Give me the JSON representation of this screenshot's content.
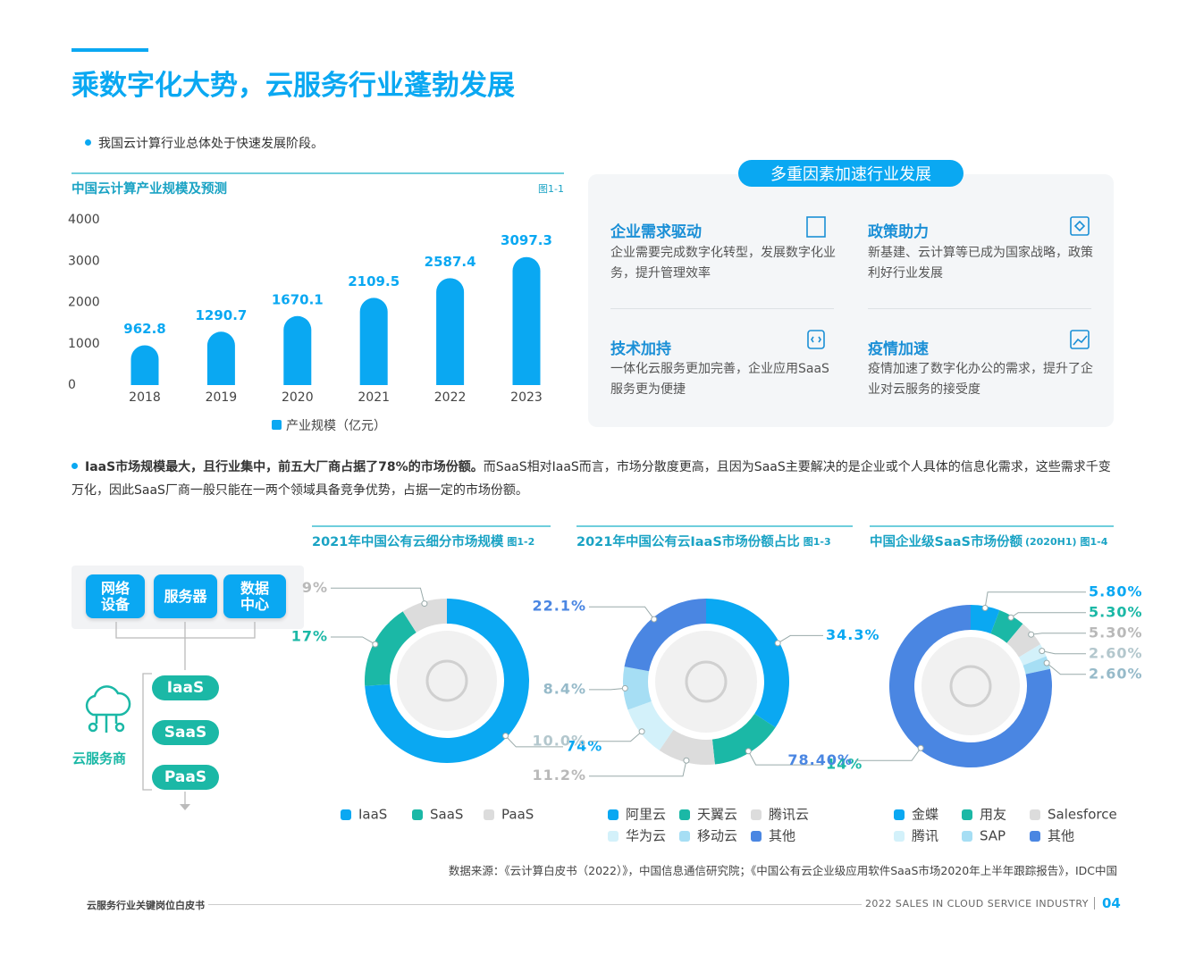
{
  "header": {
    "title": "乘数字化大势，云服务行业蓬勃发展"
  },
  "intro": {
    "bullet": "我国云计算行业总体处于快速发展阶段。"
  },
  "factors": {
    "title": "多重因素加速行业发展",
    "items": [
      {
        "title": "企业需求驱动",
        "text": "企业需要完成数字化转型，发展数字化业务，提升管理效率"
      },
      {
        "title": "政策助力",
        "text": "新基建、云计算等已成为国家战略，政策利好行业发展"
      },
      {
        "title": "技术加持",
        "text": "一体化云服务更加完善，企业应用SaaS服务更为便捷"
      },
      {
        "title": "疫情加速",
        "text": "疫情加速了数字化办公的需求，提升了企业对云服务的接受度"
      }
    ]
  },
  "bullet2": {
    "bold": "IaaS市场规模最大，且行业集中，前五大厂商占据了78%的市场份额。",
    "text": "而SaaS相对IaaS而言，市场分散度更高，且因为SaaS主要解决的是企业或个人具体的信息化需求，这些需求千变万化，因此SaaS厂商一般只能在一两个领域具备竞争优势，占据一定的市场份额。"
  },
  "diagram": {
    "sources": [
      "网络设备",
      "服务器",
      "数据中心"
    ],
    "layers": [
      "IaaS",
      "SaaS",
      "PaaS"
    ],
    "provider": "云服务商"
  },
  "chart_data": [
    {
      "type": "bar",
      "title": "中国云计算产业规模及预测",
      "figure": "图1-1",
      "categories": [
        "2018",
        "2019",
        "2020",
        "2021",
        "2022",
        "2023"
      ],
      "series": [
        {
          "name": "产业规模（亿元）",
          "color": "#0aa8f2",
          "values": [
            962.8,
            1290.7,
            1670.1,
            2109.5,
            2587.4,
            3097.3
          ]
        }
      ],
      "ylim": [
        0,
        4000
      ],
      "yticks": [
        0,
        1000,
        2000,
        3000,
        4000
      ],
      "grid": false,
      "legend": "bottom"
    },
    {
      "type": "donut",
      "title": "2021年中国公有云细分市场规模",
      "figure": "图1-2",
      "categories": [
        "IaaS",
        "SaaS",
        "PaaS"
      ],
      "values": [
        74,
        17,
        9
      ],
      "value_labels": [
        "74%",
        "17%",
        "9%"
      ],
      "colors": [
        "#0aa8f2",
        "#1bb8a6",
        "#dcdcdc"
      ],
      "legend": "bottom"
    },
    {
      "type": "donut",
      "title": "2021年中国公有云IaaS市场份额占比",
      "figure": "图1-3",
      "categories": [
        "阿里云",
        "天翼云",
        "腾讯云",
        "华为云",
        "移动云",
        "其他"
      ],
      "values": [
        34.3,
        14,
        11.2,
        10.0,
        8.4,
        22.1
      ],
      "value_labels": [
        "34.3%",
        "14%",
        "11.2%",
        "10.0%",
        "8.4%",
        "22.1%"
      ],
      "colors": [
        "#0aa8f2",
        "#1bb8a6",
        "#dcdcdc",
        "#d3f1fa",
        "#a6def4",
        "#4a86e2"
      ],
      "legend": "bottom"
    },
    {
      "type": "donut",
      "title": "中国企业级SaaS市场份额",
      "subtitle": "(2020H1)",
      "figure": "图1-4",
      "categories": [
        "金蝶",
        "用友",
        "Salesforce",
        "腾讯",
        "SAP",
        "其他"
      ],
      "values": [
        5.8,
        5.3,
        5.3,
        2.6,
        2.6,
        78.4
      ],
      "value_labels": [
        "5.80%",
        "5.30%",
        "5.30%",
        "2.60%",
        "2.60%",
        "78.40%"
      ],
      "colors": [
        "#0aa8f2",
        "#1bb8a6",
        "#dcdcdc",
        "#d3f1fa",
        "#a6def4",
        "#4a86e2"
      ],
      "legend": "bottom"
    }
  ],
  "source": "数据来源：《云计算白皮书（2022）》，中国信息通信研究院；《中国公有云企业级应用软件SaaS市场2020年上半年跟踪报告》，IDC中国",
  "footer": {
    "left": "云服务行业关键岗位白皮书",
    "right": "2022 SALES IN CLOUD SERVICE INDUSTRY",
    "page": "04"
  }
}
